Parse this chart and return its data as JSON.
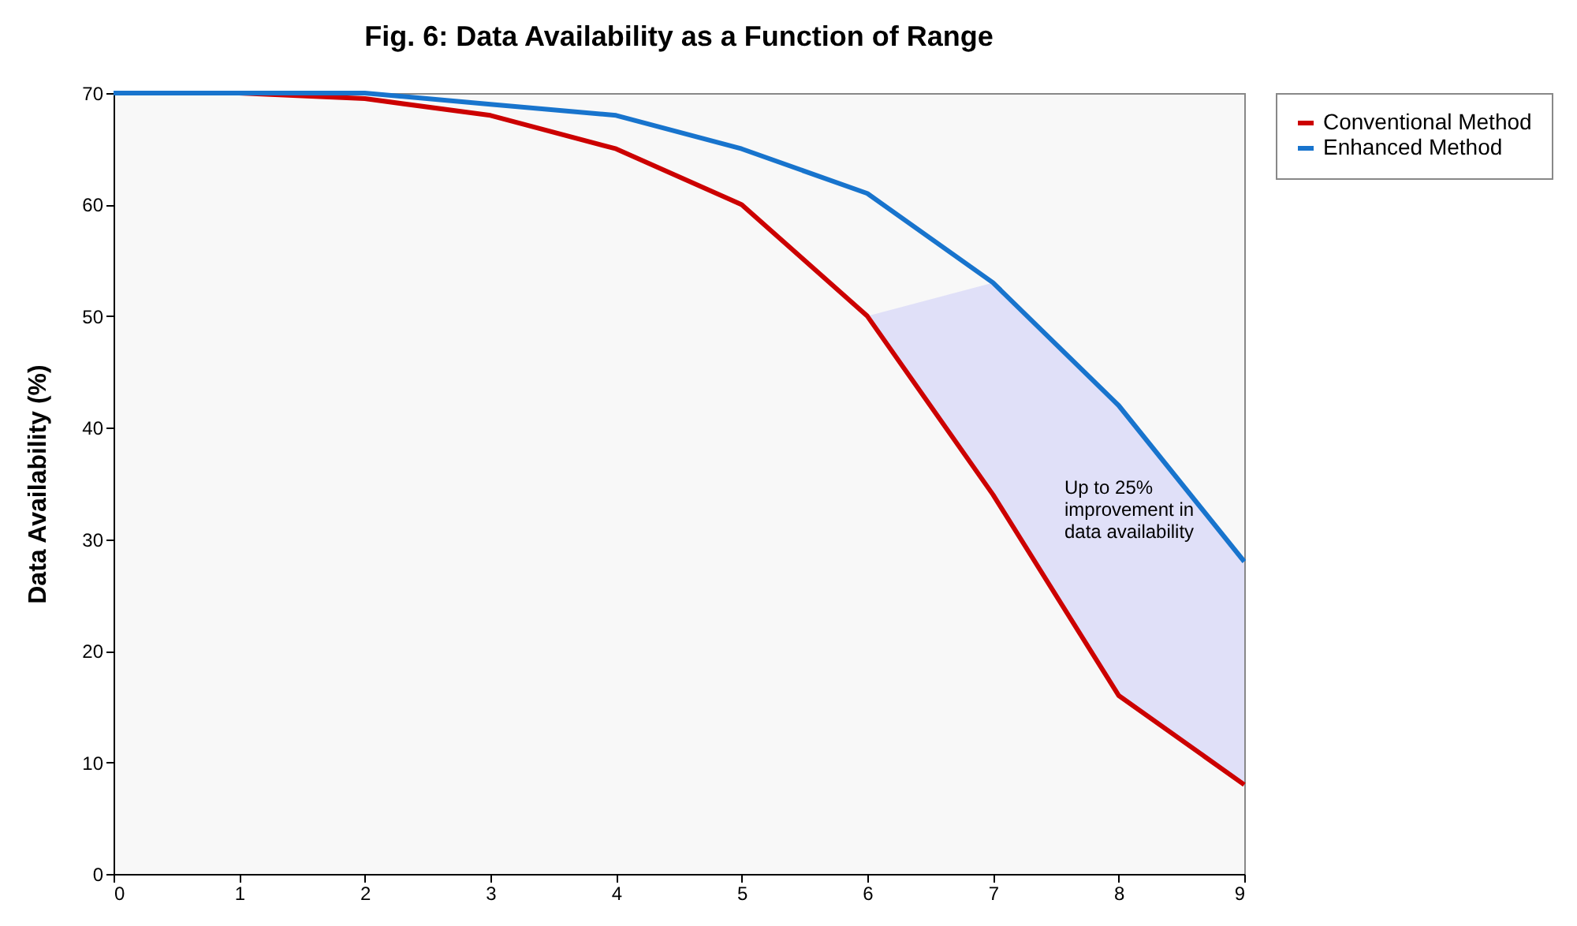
{
  "chart_data": {
    "type": "line",
    "title": "Fig. 6: Data Availability as a Function of Range",
    "ylabel": "Data Availability (%)",
    "x": [
      0,
      1,
      2,
      3,
      4,
      5,
      6,
      7,
      8,
      9
    ],
    "series": [
      {
        "name": "Conventional Method",
        "color": "#cc0000",
        "values": [
          70,
          70,
          69.5,
          68,
          65,
          60,
          50,
          34,
          16,
          8
        ]
      },
      {
        "name": "Enhanced Method",
        "color": "#1874cd",
        "values": [
          70,
          70,
          70,
          69,
          68,
          65,
          61,
          53,
          42,
          28
        ],
        "lower": [
          null,
          null,
          null,
          null,
          null,
          null,
          50,
          34,
          16,
          8
        ],
        "upper": [
          null,
          null,
          null,
          null,
          null,
          null,
          50,
          53,
          42,
          28
        ]
      }
    ],
    "annotations": [
      "Up to 25%\nimprovement in\ndata availability"
    ],
    "xlim": [
      0,
      9
    ],
    "xticks": [
      0,
      1,
      2,
      3,
      4,
      5,
      6,
      7,
      8,
      9
    ],
    "ylim": [
      0,
      70
    ],
    "yticks": [
      0,
      10,
      20,
      30,
      40,
      50,
      60,
      70
    ],
    "grid": false,
    "legend": "right",
    "marker": "none",
    "line_style": "solid"
  }
}
